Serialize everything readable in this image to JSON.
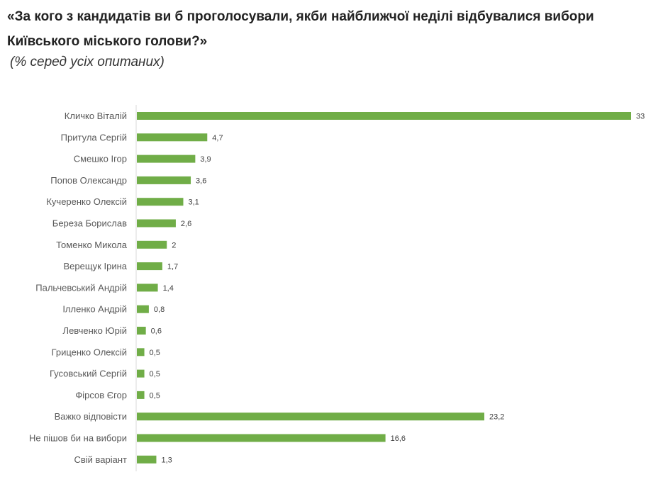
{
  "header": {
    "title": "«За кого з кандидатів ви б проголосували, якби найближчої неділі відбувалися вибори Київського міського голови?»",
    "subtitle": "(% серед усіх опитаних)"
  },
  "colors": {
    "bar": "#70ad47"
  },
  "chart_data": {
    "type": "bar",
    "orientation": "horizontal",
    "categories": [
      "Кличко Віталій",
      "Притула Сергій",
      "Смешко Ігор",
      "Попов Олександр",
      "Кучеренко Олексій",
      "Береза Борислав",
      "Томенко Микола",
      "Верещук Ірина",
      "Пальчевський Андрій",
      "Ілленко Андрій",
      "Левченко Юрій",
      "Гриценко Олексій",
      "Гусовський Сергій",
      "Фірсов Єгор",
      "Важко відповісти",
      "Не пішов би на вибори",
      "Свій варіант"
    ],
    "values": [
      33,
      4.7,
      3.9,
      3.6,
      3.1,
      2.6,
      2,
      1.7,
      1.4,
      0.8,
      0.6,
      0.5,
      0.5,
      0.5,
      23.2,
      16.6,
      1.3
    ],
    "value_labels": [
      "33",
      "4,7",
      "3,9",
      "3,6",
      "3,1",
      "2,6",
      "2",
      "1,7",
      "1,4",
      "0,8",
      "0,6",
      "0,5",
      "0,5",
      "0,5",
      "23,2",
      "16,6",
      "1,3"
    ],
    "xlim": [
      0,
      33
    ],
    "grid": false,
    "legend": "none",
    "xlabel": "",
    "ylabel": ""
  }
}
